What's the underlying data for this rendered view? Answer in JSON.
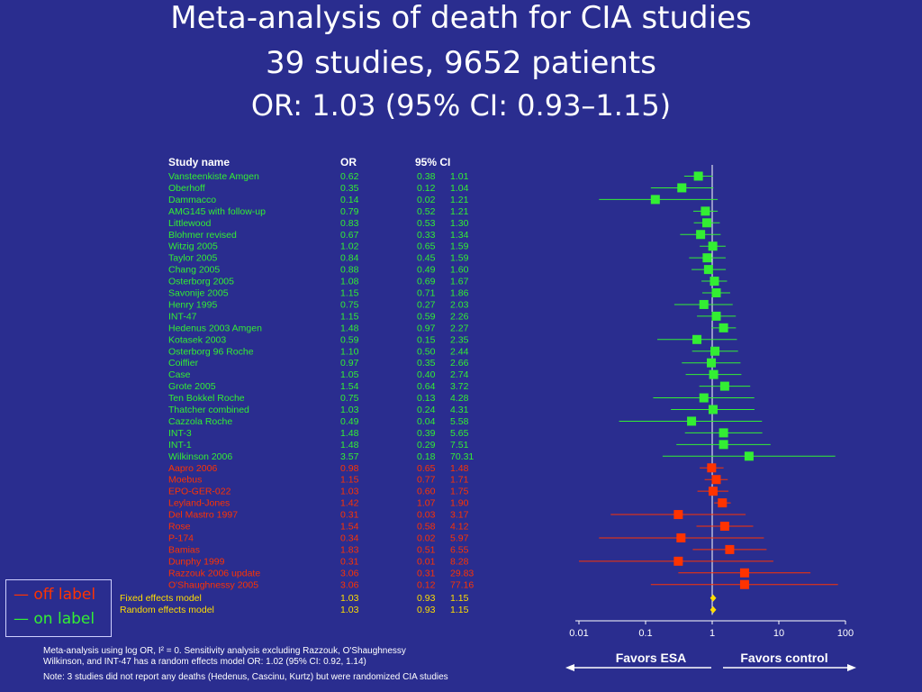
{
  "header": {
    "title": "Meta-analysis of death for CIA studies",
    "subtitle": "39 studies, 9652 patients",
    "summary": "OR: 1.03 (95% CI: 0.93–1.15)"
  },
  "colors": {
    "background": "#2a2d8f",
    "on_label": "#33ee33",
    "off_label": "#ff3300",
    "summary": "#ffdd00",
    "axis": "#ffffff"
  },
  "legend": {
    "off_label": "off label",
    "on_label": "on label",
    "off_mark": "—",
    "on_mark": "—"
  },
  "notes": {
    "line1": "Meta-analysis using log OR, I² = 0. Sensitivity analysis excluding Razzouk, O'Shaughnessy",
    "line2": "Wilkinson, and INT-47 has a random effects model OR: 1.02 (95% CI: 0.92, 1.14)",
    "line3": "Note: 3 studies did not report any deaths (Hedenus, Cascinu, Kurtz) but were randomized CIA studies"
  },
  "chart_data": {
    "type": "forest",
    "columns": {
      "study": "Study name",
      "or": "OR",
      "ci": "95%  CI"
    },
    "x_scale": "log",
    "xlim": [
      0.01,
      100
    ],
    "ticks": [
      {
        "value": 0.01,
        "label": "0.01"
      },
      {
        "value": 0.1,
        "label": "0.1"
      },
      {
        "value": 1,
        "label": "1"
      },
      {
        "value": 10,
        "label": "10"
      },
      {
        "value": 100,
        "label": "100"
      }
    ],
    "favors_left": "Favors ESA",
    "favors_right": "Favors control",
    "studies": [
      {
        "name": "Vansteenkiste Amgen",
        "or": "0.62",
        "lo": "0.38",
        "hi": "1.01",
        "group": "on"
      },
      {
        "name": "Oberhoff",
        "or": "0.35",
        "lo": "0.12",
        "hi": "1.04",
        "group": "on"
      },
      {
        "name": "Dammacco",
        "or": "0.14",
        "lo": "0.02",
        "hi": "1.21",
        "group": "on"
      },
      {
        "name": "AMG145 with follow-up",
        "or": "0.79",
        "lo": "0.52",
        "hi": "1.21",
        "group": "on"
      },
      {
        "name": "Littlewood",
        "or": "0.83",
        "lo": "0.53",
        "hi": "1.30",
        "group": "on"
      },
      {
        "name": "Blohmer revised",
        "or": "0.67",
        "lo": "0.33",
        "hi": "1.34",
        "group": "on"
      },
      {
        "name": "Witzig 2005",
        "or": "1.02",
        "lo": "0.65",
        "hi": "1.59",
        "group": "on"
      },
      {
        "name": "Taylor 2005",
        "or": "0.84",
        "lo": "0.45",
        "hi": "1.59",
        "group": "on"
      },
      {
        "name": "Chang 2005",
        "or": "0.88",
        "lo": "0.49",
        "hi": "1.60",
        "group": "on"
      },
      {
        "name": "Osterborg 2005",
        "or": "1.08",
        "lo": "0.69",
        "hi": "1.67",
        "group": "on"
      },
      {
        "name": "Savonije 2005",
        "or": "1.15",
        "lo": "0.71",
        "hi": "1.86",
        "group": "on"
      },
      {
        "name": "Henry 1995",
        "or": "0.75",
        "lo": "0.27",
        "hi": "2.03",
        "group": "on"
      },
      {
        "name": "INT-47",
        "or": "1.15",
        "lo": "0.59",
        "hi": "2.26",
        "group": "on"
      },
      {
        "name": "Hedenus 2003 Amgen",
        "or": "1.48",
        "lo": "0.97",
        "hi": "2.27",
        "group": "on"
      },
      {
        "name": "Kotasek 2003",
        "or": "0.59",
        "lo": "0.15",
        "hi": "2.35",
        "group": "on"
      },
      {
        "name": "Osterborg 96 Roche",
        "or": "1.10",
        "lo": "0.50",
        "hi": "2.44",
        "group": "on"
      },
      {
        "name": "Coiffier",
        "or": "0.97",
        "lo": "0.35",
        "hi": "2.66",
        "group": "on"
      },
      {
        "name": "Case",
        "or": "1.05",
        "lo": "0.40",
        "hi": "2.74",
        "group": "on"
      },
      {
        "name": "Grote 2005",
        "or": "1.54",
        "lo": "0.64",
        "hi": "3.72",
        "group": "on"
      },
      {
        "name": "Ten Bokkel Roche",
        "or": "0.75",
        "lo": "0.13",
        "hi": "4.28",
        "group": "on"
      },
      {
        "name": "Thatcher combined",
        "or": "1.03",
        "lo": "0.24",
        "hi": "4.31",
        "group": "on"
      },
      {
        "name": "Cazzola Roche",
        "or": "0.49",
        "lo": "0.04",
        "hi": "5.58",
        "group": "on"
      },
      {
        "name": "INT-3",
        "or": "1.48",
        "lo": "0.39",
        "hi": "5.65",
        "group": "on"
      },
      {
        "name": "INT-1",
        "or": "1.48",
        "lo": "0.29",
        "hi": "7.51",
        "group": "on"
      },
      {
        "name": "Wilkinson 2006",
        "or": "3.57",
        "lo": "0.18",
        "hi": "70.31",
        "group": "on"
      },
      {
        "name": "Aapro 2006",
        "or": "0.98",
        "lo": "0.65",
        "hi": "1.48",
        "group": "off"
      },
      {
        "name": "Moebus",
        "or": "1.15",
        "lo": "0.77",
        "hi": "1.71",
        "group": "off"
      },
      {
        "name": "EPO-GER-022",
        "or": "1.03",
        "lo": "0.60",
        "hi": "1.75",
        "group": "off"
      },
      {
        "name": "Leyland-Jones",
        "or": "1.42",
        "lo": "1.07",
        "hi": "1.90",
        "group": "off"
      },
      {
        "name": "Del Mastro 1997",
        "or": "0.31",
        "lo": "0.03",
        "hi": "3.17",
        "group": "off"
      },
      {
        "name": "Rose",
        "or": "1.54",
        "lo": "0.58",
        "hi": "4.12",
        "group": "off"
      },
      {
        "name": "P-174",
        "or": "0.34",
        "lo": "0.02",
        "hi": "5.97",
        "group": "off"
      },
      {
        "name": "Bamias",
        "or": "1.83",
        "lo": "0.51",
        "hi": "6.55",
        "group": "off"
      },
      {
        "name": "Dunphy 1999",
        "or": "0.31",
        "lo": "0.01",
        "hi": "8.28",
        "group": "off"
      },
      {
        "name": "Razzouk 2006 update",
        "or": "3.06",
        "lo": "0.31",
        "hi": "29.83",
        "group": "off"
      },
      {
        "name": "O'Shaughnessy 2005",
        "or": "3.06",
        "lo": "0.12",
        "hi": "77.16",
        "group": "off"
      }
    ],
    "summaries": [
      {
        "name": "Fixed effects model",
        "or": "1.03",
        "lo": "0.93",
        "hi": "1.15"
      },
      {
        "name": "Random effects model",
        "or": "1.03",
        "lo": "0.93",
        "hi": "1.15"
      }
    ]
  }
}
